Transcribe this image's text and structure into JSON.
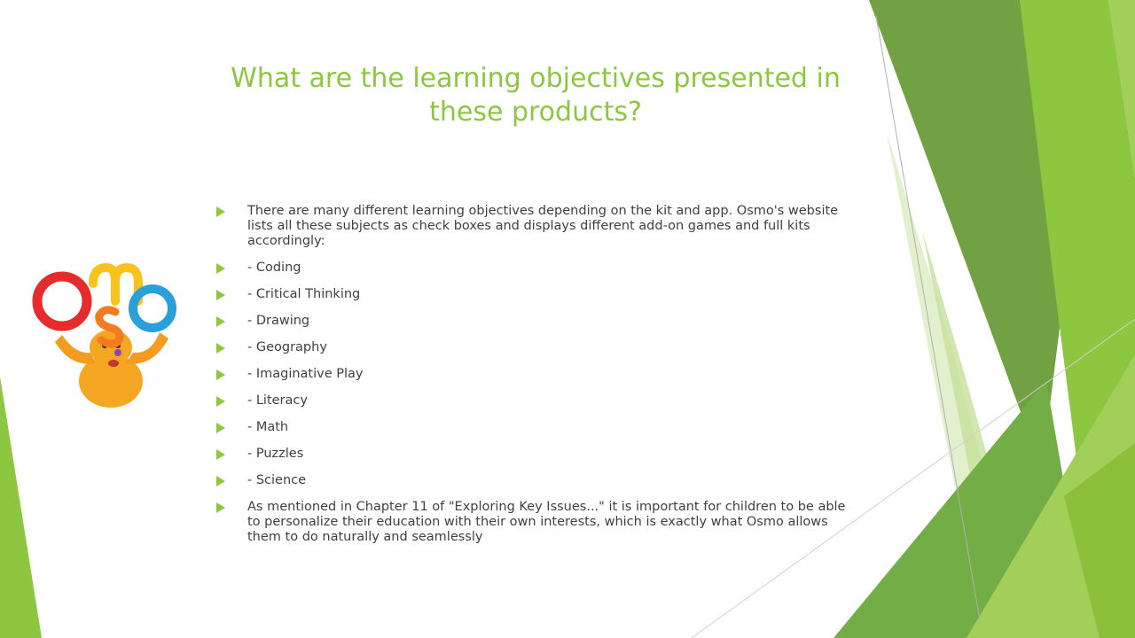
{
  "slide": {
    "title": "What are the learning objectives presented in these products?",
    "bullets": [
      "There are many different learning objectives depending on the kit and app. Osmo's website lists all these subjects as check boxes and displays different add-on games and full kits accordingly:",
      "- Coding",
      "- Critical Thinking",
      "- Drawing",
      "- Geography",
      "- Imaginative Play",
      "- Literacy",
      "- Math",
      "- Puzzles",
      "- Science",
      "As mentioned in Chapter 11 of \"Exploring Key Issues...\" it is important for children to be able to personalize their education with their own interests, which is exactly what Osmo allows them to do naturally and seamlessly"
    ]
  },
  "logo": {
    "icon": "osmo-mascot-logo",
    "letters": [
      "O",
      "s",
      "m",
      "o"
    ],
    "colors": [
      "#e52b2b",
      "#f47b20",
      "#f7c31c",
      "#2b9fd9"
    ]
  },
  "theme": {
    "accent": "#8dc63f",
    "dark_green": "#6a9c3a",
    "light_green": "#c9e39c"
  }
}
